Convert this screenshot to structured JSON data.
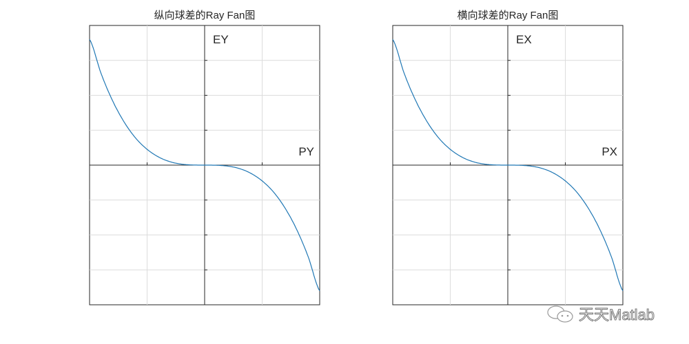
{
  "chart_data": [
    {
      "type": "line",
      "title": "纵向球差的Ray Fan图",
      "xlabel": "PY",
      "ylabel": "EY",
      "xlim": [
        -1,
        1
      ],
      "ylim": [
        -1,
        1
      ],
      "grid": true,
      "x": [
        -1,
        -0.9,
        -0.8,
        -0.7,
        -0.6,
        -0.5,
        -0.4,
        -0.3,
        -0.2,
        -0.1,
        0,
        0.1,
        0.2,
        0.3,
        0.4,
        0.5,
        0.6,
        0.7,
        0.8,
        0.9,
        1
      ],
      "y": [
        0.9,
        0.656,
        0.461,
        0.309,
        0.194,
        0.113,
        0.058,
        0.024,
        0.007,
        0.001,
        0,
        -0.001,
        -0.007,
        -0.024,
        -0.058,
        -0.113,
        -0.194,
        -0.309,
        -0.461,
        -0.656,
        -0.9
      ],
      "color": "#1f77b4"
    },
    {
      "type": "line",
      "title": "横向球差的Ray Fan图",
      "xlabel": "PX",
      "ylabel": "EX",
      "xlim": [
        -1,
        1
      ],
      "ylim": [
        -1,
        1
      ],
      "grid": true,
      "x": [
        -1,
        -0.9,
        -0.8,
        -0.7,
        -0.6,
        -0.5,
        -0.4,
        -0.3,
        -0.2,
        -0.1,
        0,
        0.1,
        0.2,
        0.3,
        0.4,
        0.5,
        0.6,
        0.7,
        0.8,
        0.9,
        1
      ],
      "y": [
        0.9,
        0.656,
        0.461,
        0.309,
        0.194,
        0.113,
        0.058,
        0.024,
        0.007,
        0.001,
        0,
        -0.001,
        -0.007,
        -0.024,
        -0.058,
        -0.113,
        -0.194,
        -0.309,
        -0.461,
        -0.656,
        -0.9
      ],
      "color": "#1f77b4"
    }
  ],
  "watermark": "天天Matlab"
}
